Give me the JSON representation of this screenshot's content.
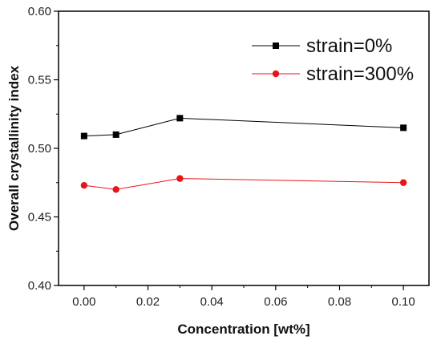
{
  "chart_data": {
    "type": "line",
    "title": "",
    "xlabel": "Concentration [wt%]",
    "ylabel": "Overall crystallinity index",
    "xlim": [
      -0.008,
      0.108
    ],
    "ylim": [
      0.4,
      0.6
    ],
    "xticks": [
      "0.00",
      "0.02",
      "0.04",
      "0.06",
      "0.08",
      "0.10"
    ],
    "yticks": [
      "0.40",
      "0.45",
      "0.50",
      "0.55",
      "0.60"
    ],
    "x": [
      0.0,
      0.01,
      0.03,
      0.1
    ],
    "legend_position": "top-right",
    "grid": false,
    "series": [
      {
        "name": "strain=0%",
        "color": "#000000",
        "marker": "square",
        "values": [
          0.509,
          0.51,
          0.522,
          0.515
        ]
      },
      {
        "name": "strain=300%",
        "color": "#e8141b",
        "marker": "circle",
        "values": [
          0.473,
          0.47,
          0.478,
          0.475
        ]
      }
    ]
  }
}
